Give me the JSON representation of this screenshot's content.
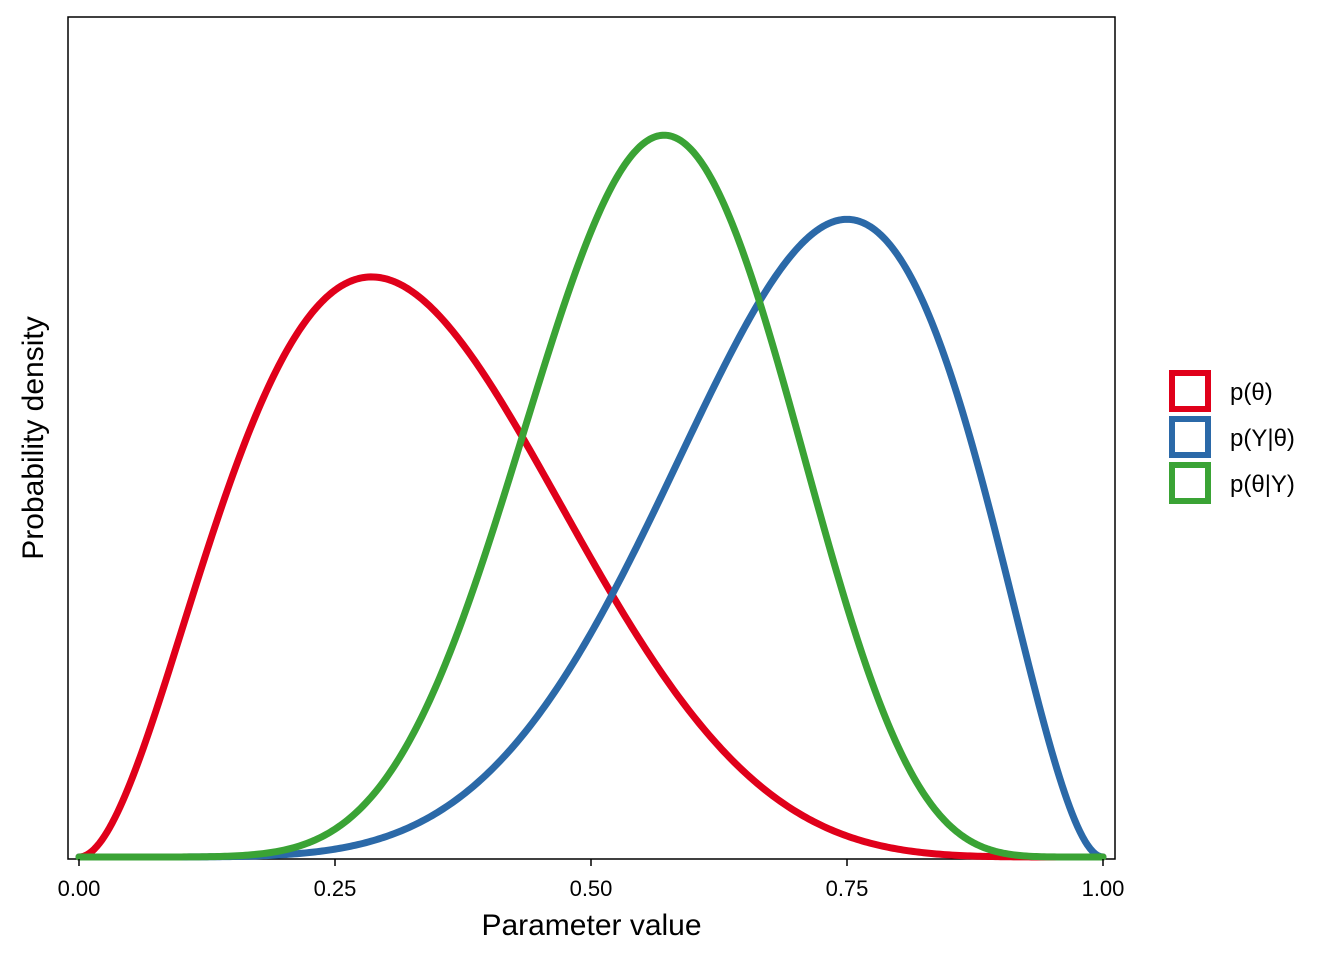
{
  "chart_data": {
    "type": "line",
    "title": "",
    "xlabel": "Parameter value",
    "ylabel": "Probability density",
    "xlim": [
      0,
      1
    ],
    "ylim": [
      0,
      3.36
    ],
    "x_ticks": [
      "0.00",
      "0.25",
      "0.50",
      "0.75",
      "1.00"
    ],
    "y_ticks": [],
    "grid": false,
    "legend_position": "right",
    "series": [
      {
        "name": "p(θ)",
        "color": "#e0001a",
        "distribution": "beta(3, 6)",
        "x": [
          0,
          0.05,
          0.1,
          0.15,
          0.2,
          0.25,
          0.3,
          0.35,
          0.4,
          0.45,
          0.5,
          0.55,
          0.6,
          0.65,
          0.7,
          0.75,
          0.8,
          0.85,
          0.9,
          0.95,
          1
        ],
        "y": [
          0,
          0.387,
          1.204,
          1.918,
          2.294,
          2.373,
          2.259,
          2.014,
          1.672,
          1.287,
          0.875,
          0.579,
          0.344,
          0.181,
          0.082,
          0.031,
          0.009,
          0.002,
          0,
          0,
          0
        ]
      },
      {
        "name": "p(Y|θ)",
        "color": "#2b69a8",
        "distribution": "beta(7, 3)",
        "x": [
          0,
          0.05,
          0.1,
          0.15,
          0.2,
          0.25,
          0.3,
          0.35,
          0.4,
          0.45,
          0.5,
          0.55,
          0.6,
          0.65,
          0.7,
          0.75,
          0.8,
          0.85,
          0.9,
          0.95,
          1
        ],
        "y": [
          0,
          0,
          0,
          0,
          0.009,
          0.032,
          0.088,
          0.198,
          0.383,
          0.656,
          1.016,
          1.438,
          1.881,
          2.276,
          2.542,
          2.67,
          2.577,
          2.229,
          1.579,
          0.772,
          0
        ]
      },
      {
        "name": "p(θ|Y)",
        "color": "#3aa335",
        "distribution": "beta(9, 7)",
        "x": [
          0,
          0.05,
          0.1,
          0.15,
          0.2,
          0.25,
          0.3,
          0.35,
          0.4,
          0.45,
          0.5,
          0.55,
          0.6,
          0.65,
          0.7,
          0.75,
          0.8,
          0.85,
          0.9,
          0.95,
          1
        ],
        "y": [
          0,
          0,
          0,
          0.003,
          0.022,
          0.095,
          0.293,
          0.694,
          1.303,
          2.002,
          2.644,
          3.02,
          3.01,
          2.628,
          1.952,
          1.182,
          0.564,
          0.19,
          0.038,
          0.003,
          0
        ]
      }
    ]
  }
}
